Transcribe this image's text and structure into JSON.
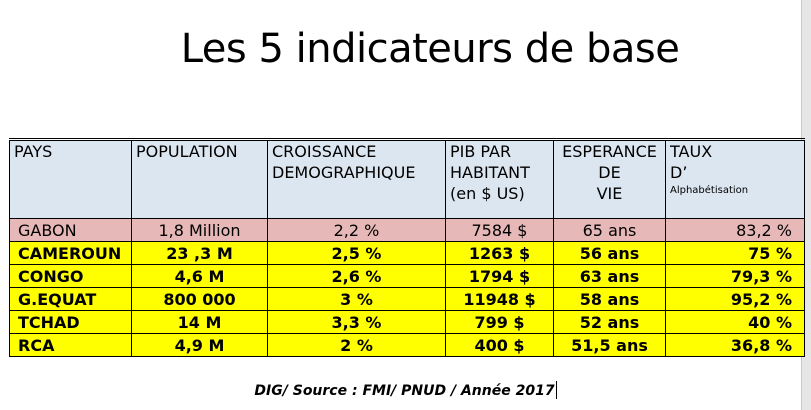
{
  "title": "Les 5 indicateurs de base",
  "table": {
    "headers": {
      "pays": "PAYS",
      "population": "POPULATION",
      "croissance_1": "CROISSANCE",
      "croissance_2": "DEMOGRAPHIQUE",
      "pib_1": "PIB PAR",
      "pib_2": "HABITANT",
      "pib_3": "(en $ US)",
      "esperance_1": "ESPERANCE",
      "esperance_2": "DE",
      "esperance_3": "VIE",
      "taux_1": "TAUX",
      "taux_2": "D’",
      "taux_3": "Alphabétisation"
    },
    "rows": [
      {
        "pays": "GABON",
        "population": "1,8 Million",
        "croissance": "2,2 %",
        "pib": "7584 $",
        "esperance": "65 ans",
        "taux": "83,2 %"
      },
      {
        "pays": "CAMEROUN",
        "population": "23 ,3 M",
        "croissance": "2,5 %",
        "pib": "1263 $",
        "esperance": "56 ans",
        "taux": "75 %"
      },
      {
        "pays": "CONGO",
        "population": "4,6 M",
        "croissance": "2,6 %",
        "pib": "1794 $",
        "esperance": "63 ans",
        "taux": "79,3 %"
      },
      {
        "pays": "G.EQUAT",
        "population": "800 000",
        "croissance": "3 %",
        "pib": "11948 $",
        "esperance": "58 ans",
        "taux": "95,2 %"
      },
      {
        "pays": "TCHAD",
        "population": "14 M",
        "croissance": "3,3 %",
        "pib": "799 $",
        "esperance": "52 ans",
        "taux": "40 %"
      },
      {
        "pays": "RCA",
        "population": "4,9 M",
        "croissance": "2 %",
        "pib": "400 $",
        "esperance": "51,5 ans",
        "taux": "36,8 %"
      }
    ]
  },
  "source": "DIG/ Source : FMI/ PNUD / Année 2017",
  "colors": {
    "header_bg": "#dce6f1",
    "gabon_row": "#e6b8b7",
    "highlight_rows": "#ffff00"
  }
}
